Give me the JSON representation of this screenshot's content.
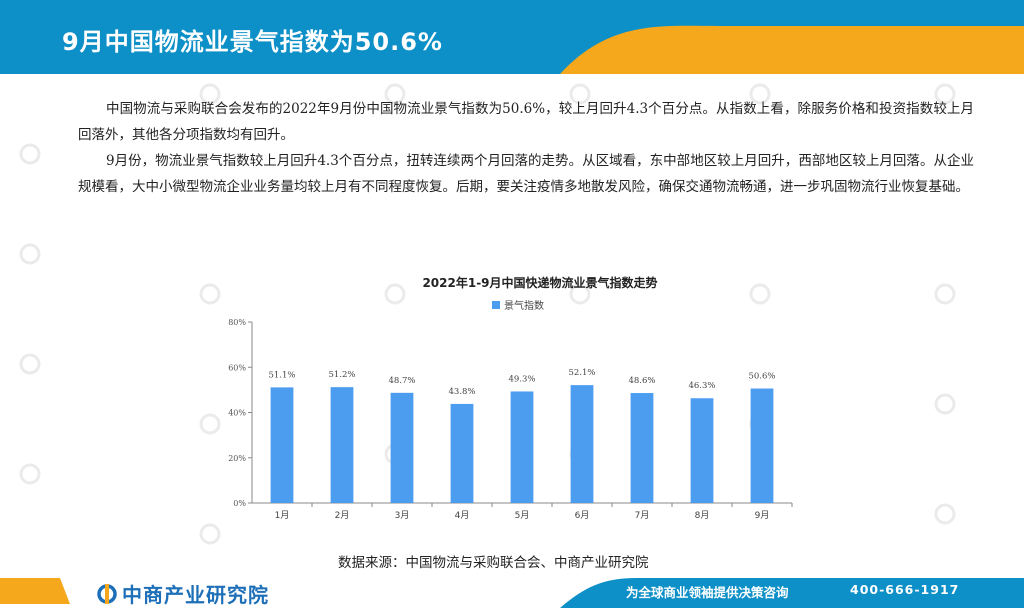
{
  "header": {
    "title": "9月中国物流业景气指数为50.6%",
    "colors": {
      "band": "#0d8fc7",
      "accent": "#f5a81c"
    }
  },
  "body": {
    "paragraphs": [
      "中国物流与采购联合会发布的2022年9月份中国物流业景气指数为50.6%，较上月回升4.3个百分点。从指数上看，除服务价格和投资指数较上月回落外，其他各分项指数均有回升。",
      "9月份，物流业景气指数较上月回升4.3个百分点，扭转连续两个月回落的走势。从区域看，东中部地区较上月回升，西部地区较上月回落。从企业规模看，大中小微型物流企业业务量均较上月有不同程度恢复。后期，要关注疫情多地散发风险，确保交通物流畅通，进一步巩固物流行业恢复基础。"
    ]
  },
  "chart_data": {
    "type": "bar",
    "title": "2022年1-9月中国快递物流业景气指数走势",
    "categories": [
      "1月",
      "2月",
      "3月",
      "4月",
      "5月",
      "6月",
      "7月",
      "8月",
      "9月"
    ],
    "series": [
      {
        "name": "景气指数",
        "values": [
          51.1,
          51.2,
          48.7,
          43.8,
          49.3,
          52.1,
          48.6,
          46.3,
          50.6
        ],
        "labels": [
          "51.1%",
          "51.2%",
          "48.7%",
          "43.8%",
          "49.3%",
          "52.1%",
          "48.6%",
          "46.3%",
          "50.6%"
        ],
        "color": "#4c9df0"
      }
    ],
    "yticks": [
      "0%",
      "20%",
      "40%",
      "60%",
      "80%"
    ],
    "ylim": [
      0,
      80
    ],
    "legend_position": "top-center",
    "grid": false
  },
  "source": "数据来源：中国物流与采购联合会、中商产业研究院",
  "footer": {
    "brand": "中商产业研究院",
    "slogan": "为全球商业领袖提供决策咨询",
    "phone": "400-666-1917"
  }
}
